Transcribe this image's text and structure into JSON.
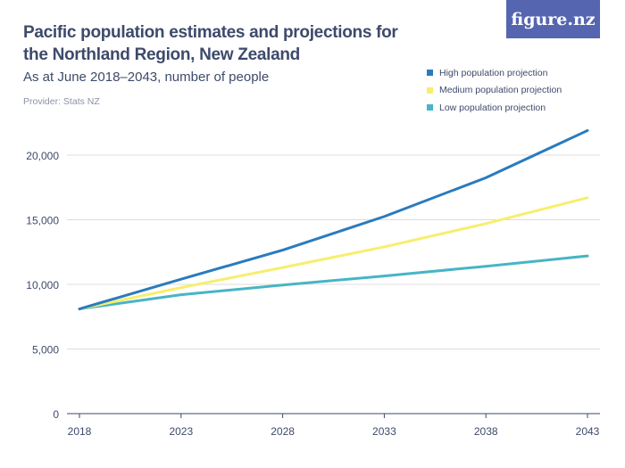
{
  "header": {
    "title": "Pacific population estimates and projections for the Northland Region, New Zealand",
    "subtitle": "As at June 2018–2043, number of people",
    "provider": "Provider: Stats NZ",
    "logo": "figure.nz"
  },
  "chart_data": {
    "type": "line",
    "title": "Pacific population estimates and projections for the Northland Region, New Zealand",
    "subtitle": "As at June 2018–2043, number of people",
    "x": [
      2018,
      2023,
      2028,
      2033,
      2038,
      2043
    ],
    "x_ticks": [
      "2018",
      "2023",
      "2028",
      "2033",
      "2038",
      "2043"
    ],
    "y_ticks": [
      "0",
      "5,000",
      "10,000",
      "15,000",
      "20,000"
    ],
    "ylim": [
      0,
      20000
    ],
    "grid": true,
    "legend": "top-right",
    "series": [
      {
        "name": "High population projection",
        "color": "#2a7bbd",
        "values": [
          8100,
          10400,
          12650,
          15250,
          18250,
          21900
        ]
      },
      {
        "name": "Medium population projection",
        "color": "#f7ee6e",
        "values": [
          8100,
          9750,
          11300,
          12900,
          14700,
          16700
        ]
      },
      {
        "name": "Low population projection",
        "color": "#47b5c6",
        "values": [
          8100,
          9200,
          9950,
          10650,
          11400,
          12200
        ]
      }
    ]
  }
}
